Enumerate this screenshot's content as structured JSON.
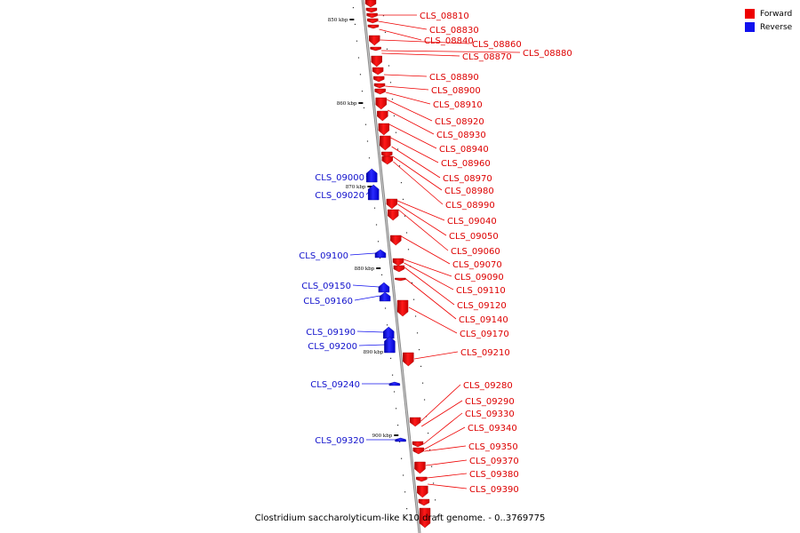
{
  "legend": {
    "forward": {
      "label": "Forward",
      "color": "#ee0000"
    },
    "reverse": {
      "label": "Reverse",
      "color": "#1111ee"
    }
  },
  "caption": "Clostridium saccharolyticum-like K10 draft genome. - 0..3769775",
  "ticks": [
    "850 kbp",
    "860 kbp",
    "870 kbp",
    "880 kbp",
    "890 kbp",
    "900 kbp"
  ],
  "genes_forward": [
    "CLS_08810",
    "CLS_08830",
    "CLS_08840",
    "CLS_08860",
    "CLS_08870",
    "CLS_08880",
    "CLS_08890",
    "CLS_08900",
    "CLS_08910",
    "CLS_08920",
    "CLS_08930",
    "CLS_08940",
    "CLS_08960",
    "CLS_08970",
    "CLS_08980",
    "CLS_08990",
    "CLS_09040",
    "CLS_09050",
    "CLS_09060",
    "CLS_09070",
    "CLS_09090",
    "CLS_09110",
    "CLS_09120",
    "CLS_09140",
    "CLS_09170",
    "CLS_09210",
    "CLS_09280",
    "CLS_09290",
    "CLS_09330",
    "CLS_09340",
    "CLS_09350",
    "CLS_09370",
    "CLS_09380",
    "CLS_09390"
  ],
  "genes_reverse": [
    "CLS_09000",
    "CLS_09020",
    "CLS_09100",
    "CLS_09150",
    "CLS_09160",
    "CLS_09190",
    "CLS_09200",
    "CLS_09240",
    "CLS_09320"
  ]
}
